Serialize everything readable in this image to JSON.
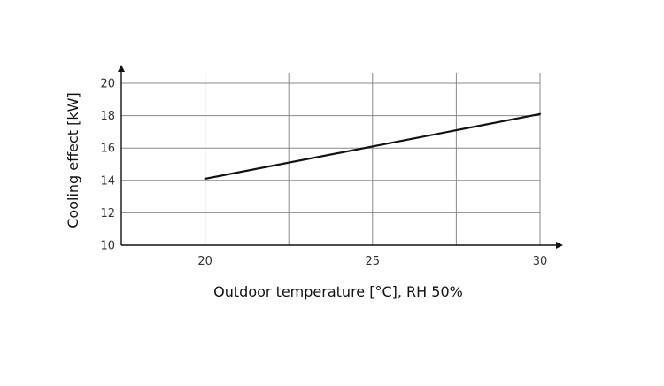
{
  "chart_data": {
    "type": "line",
    "title": "",
    "xlabel": "Outdoor temperature [°C], RH 50%",
    "ylabel": "Cooling effect [kW]",
    "xlim": [
      17.5,
      30
    ],
    "ylim": [
      10,
      20
    ],
    "x_ticks": [
      20,
      25,
      30
    ],
    "x_tick_labels": [
      "20",
      "25",
      "30"
    ],
    "x_gridlines": [
      20,
      22.5,
      25,
      27.5,
      30
    ],
    "y_ticks": [
      10,
      12,
      14,
      16,
      18,
      20
    ],
    "y_tick_labels": [
      "10",
      "12",
      "14",
      "16",
      "18",
      "20"
    ],
    "grid": true,
    "legend": "none",
    "colors": {
      "line": "#111111",
      "grid": "#888888",
      "axis": "#111111"
    },
    "series": [
      {
        "x": [
          20,
          30
        ],
        "y": [
          14.1,
          18.1
        ]
      }
    ]
  }
}
